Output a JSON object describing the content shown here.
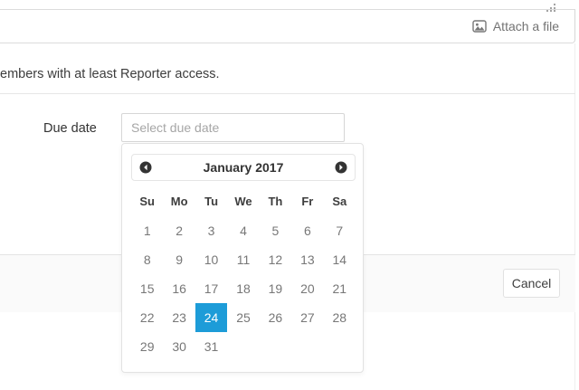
{
  "attach_bar": {
    "label": "Attach a file"
  },
  "help_text": "embers with at least Reporter access.",
  "due_date": {
    "label": "Due date",
    "placeholder": "Select due date"
  },
  "datepicker": {
    "title": "January 2017",
    "weekdays": [
      "Su",
      "Mo",
      "Tu",
      "We",
      "Th",
      "Fr",
      "Sa"
    ],
    "weeks": [
      [
        "1",
        "2",
        "3",
        "4",
        "5",
        "6",
        "7"
      ],
      [
        "8",
        "9",
        "10",
        "11",
        "12",
        "13",
        "14"
      ],
      [
        "15",
        "16",
        "17",
        "18",
        "19",
        "20",
        "21"
      ],
      [
        "22",
        "23",
        "24",
        "25",
        "26",
        "27",
        "28"
      ],
      [
        "29",
        "30",
        "31",
        "",
        "",
        "",
        ""
      ]
    ],
    "selected_day": "24",
    "selected_color": "#1d9cd8"
  },
  "footer": {
    "cancel_label": "Cancel"
  }
}
